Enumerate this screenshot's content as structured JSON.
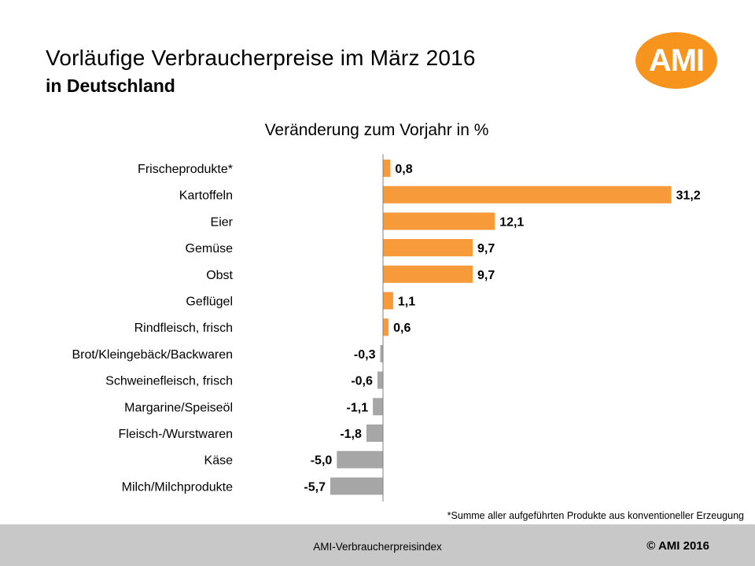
{
  "header": {
    "title_line1": "Vorläufige Verbraucherpreise im März 2016",
    "title_line2": "in Deutschland",
    "logo_text": "AMI"
  },
  "chart_data": {
    "type": "bar",
    "orientation": "horizontal",
    "title": "Veränderung zum Vorjahr in %",
    "categories": [
      "Frischeprodukte*",
      "Kartoffeln",
      "Eier",
      "Gemüse",
      "Obst",
      "Geflügel",
      "Rindfleisch, frisch",
      "Brot/Kleingebäck/Backwaren",
      "Schweinefleisch, frisch",
      "Margarine/Speiseöl",
      "Fleisch-/Wurstwaren",
      "Käse",
      "Milch/Milchprodukte"
    ],
    "values": [
      0.8,
      31.2,
      12.1,
      9.7,
      9.7,
      1.1,
      0.6,
      -0.3,
      -0.6,
      -1.1,
      -1.8,
      -5.0,
      -5.7
    ],
    "labels": [
      "0,8",
      "31,2",
      "12,1",
      "9,7",
      "9,7",
      "1,1",
      "0,6",
      "-0,3",
      "-0,6",
      "-1,1",
      "-1,8",
      "-5,0",
      "-5,7"
    ],
    "positive_color": "#f79a3a",
    "negative_color": "#a6a6a6",
    "axis_color": "#808080"
  },
  "footnote": "*Summe aller aufgeführten Produkte aus konventioneller Erzeugung",
  "footer": {
    "left": "AMI-Verbraucherpreisindex",
    "right": "© AMI 2016"
  }
}
